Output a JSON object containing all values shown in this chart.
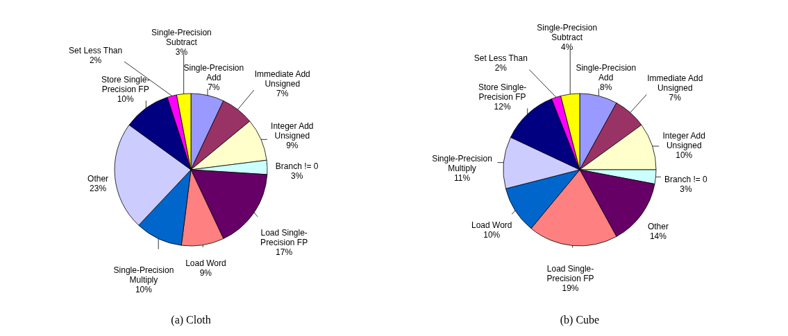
{
  "chart_data": [
    {
      "type": "pie",
      "title": "(a) Cloth",
      "legend": false,
      "categories": [
        "Single-Precision\nAdd",
        "Immediate Add\nUnsigned",
        "Integer Add\nUnsigned",
        "Branch != 0",
        "Load Single-\nPrecision FP",
        "Load Word",
        "Single-Precision\nMultiply",
        "Other",
        "Store Single-\nPrecision FP",
        "Set Less Than",
        "Single-Precision\nSubtract"
      ],
      "values": [
        7,
        7,
        9,
        3,
        17,
        9,
        10,
        23,
        10,
        2,
        3
      ],
      "value_labels": [
        "7%",
        "7%",
        "9%",
        "3%",
        "17%",
        "9%",
        "10%",
        "23%",
        "10%",
        "2%",
        "3%"
      ],
      "colors": [
        "#9999ff",
        "#993366",
        "#ffffcc",
        "#ccffff",
        "#660066",
        "#ff8080",
        "#0066cc",
        "#ccccff",
        "#000080",
        "#ff00ff",
        "#ffff00"
      ]
    },
    {
      "type": "pie",
      "title": "(b) Cube",
      "legend": false,
      "categories": [
        "Single-Precision\nAdd",
        "Immediate Add\nUnsigned",
        "Integer Add\nUnsigned",
        "Branch != 0",
        "Other",
        "Load Single-\nPrecision FP",
        "Load Word",
        "Single-Precision\nMultiply",
        "Store Single-\nPrecision FP",
        "Set Less Than",
        "Single-Precision\nSubtract"
      ],
      "values": [
        8,
        7,
        10,
        3,
        14,
        19,
        10,
        11,
        12,
        2,
        4
      ],
      "value_labels": [
        "8%",
        "7%",
        "10%",
        "3%",
        "14%",
        "19%",
        "10%",
        "11%",
        "12%",
        "2%",
        "4%"
      ],
      "colors": [
        "#9999ff",
        "#993366",
        "#ffffcc",
        "#ccffff",
        "#660066",
        "#ff8080",
        "#0066cc",
        "#ccccff",
        "#000080",
        "#ff00ff",
        "#ffff00"
      ]
    }
  ]
}
